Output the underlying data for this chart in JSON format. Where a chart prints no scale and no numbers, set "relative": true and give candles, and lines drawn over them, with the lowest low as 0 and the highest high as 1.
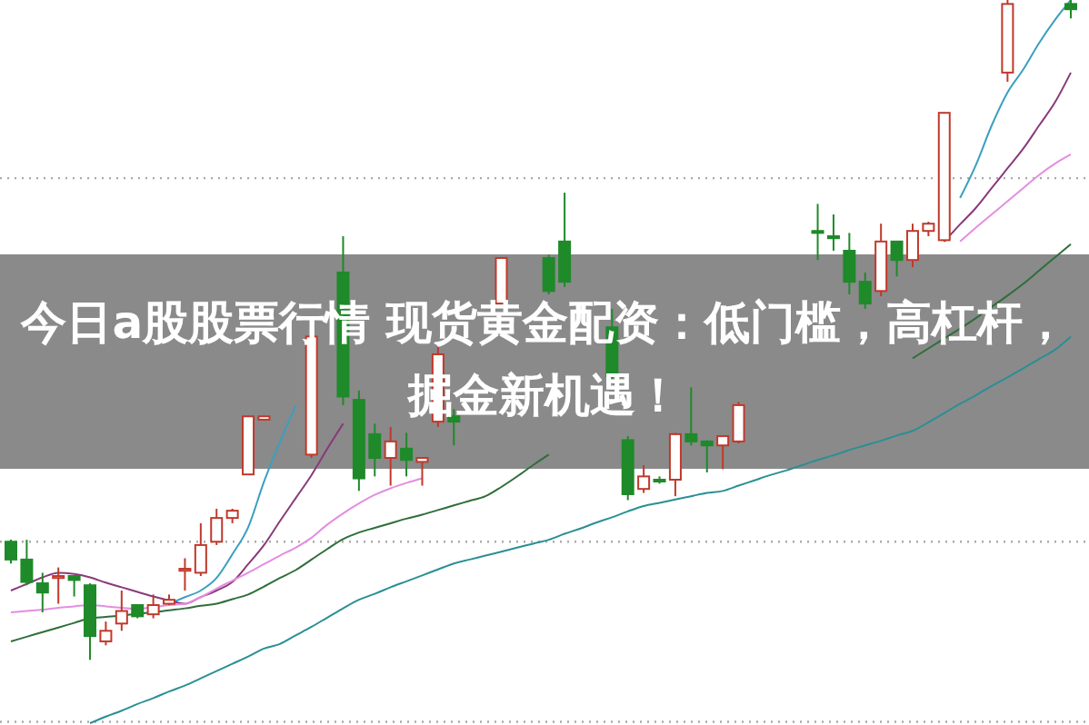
{
  "chart_data": {
    "type": "candlestick",
    "relative": true,
    "title": "今日a股股票行情 现货黄金配资：低门槛，高杠杆，掘金新机遇！",
    "categories": [
      null,
      null,
      null,
      null,
      null,
      null,
      null,
      null,
      null,
      null,
      null,
      null,
      null,
      null,
      null,
      null,
      null,
      null,
      null,
      null,
      null,
      null,
      null,
      null,
      null,
      null,
      null,
      null,
      null,
      null,
      null,
      null,
      null,
      null,
      null,
      null,
      null,
      null,
      null,
      null,
      null,
      null,
      null,
      null,
      null,
      null,
      null,
      null,
      null,
      null,
      null,
      null,
      null,
      null,
      null,
      null,
      null,
      null,
      null,
      null,
      null,
      null,
      null,
      null,
      null,
      null,
      null,
      null
    ],
    "ohlc": [
      [
        0.179,
        0.182,
        0.146,
        0.152
      ],
      [
        0.152,
        0.182,
        0.113,
        0.118
      ],
      [
        0.116,
        0.132,
        0.072,
        0.102
      ],
      [
        0.124,
        0.14,
        0.085,
        0.127
      ],
      [
        0.127,
        0.127,
        0.096,
        0.121
      ],
      [
        0.113,
        0.116,
        0,
        0.036
      ],
      [
        0.028,
        0.058,
        0.022,
        0.044
      ],
      [
        0.055,
        0.105,
        0.044,
        0.074
      ],
      [
        0.083,
        0.083,
        0.063,
        0.066
      ],
      [
        0.069,
        0.099,
        0.063,
        0.083
      ],
      [
        0.085,
        0.099,
        0.083,
        0.091
      ],
      [
        0.135,
        0.154,
        0.105,
        0.138
      ],
      [
        0.132,
        0.207,
        0.127,
        0.174
      ],
      [
        0.179,
        0.229,
        0.174,
        0.215
      ],
      [
        0.215,
        0.229,
        0.207,
        0.226
      ],
      [
        0.281,
        0.369,
        0.281,
        0.369
      ],
      [
        0.364,
        0.369,
        0.364,
        0.369
      ],
      null,
      null,
      [
        0.311,
        0.49,
        0.306,
        0.49
      ],
      null,
      [
        0.587,
        0.642,
        0.386,
        0.399
      ],
      [
        0.394,
        0.408,
        0.256,
        0.275
      ],
      [
        0.342,
        0.358,
        0.278,
        0.306
      ],
      [
        0.306,
        0.353,
        0.264,
        0.331
      ],
      [
        0.32,
        0.344,
        0.278,
        0.303
      ],
      [
        0.3,
        0.306,
        0.264,
        0.306
      ],
      [
        0.361,
        0.477,
        0.353,
        0.463
      ],
      [
        0.369,
        0.38,
        0.325,
        0.361
      ],
      null,
      null,
      [
        0.54,
        0.609,
        0.54,
        0.609
      ],
      null,
      null,
      [
        0.609,
        0.614,
        0.554,
        0.559
      ],
      [
        0.634,
        0.708,
        0.565,
        0.573
      ],
      null,
      null,
      [
        0.504,
        0.532,
        0.421,
        0.43
      ],
      [
        0.333,
        0.339,
        0.242,
        0.251
      ],
      [
        0.259,
        0.295,
        0.253,
        0.278
      ],
      [
        0.273,
        0.278,
        0.267,
        0.271
      ],
      [
        0.273,
        0.344,
        0.248,
        0.342
      ],
      [
        0.342,
        0.413,
        0.325,
        0.331
      ],
      [
        0.331,
        0.333,
        0.284,
        0.325
      ],
      [
        0.325,
        0.339,
        0.289,
        0.339
      ],
      [
        0.331,
        0.391,
        0.328,
        0.386
      ],
      null,
      null,
      null,
      null,
      [
        0.65,
        0.691,
        0.606,
        0.647
      ],
      [
        0.642,
        0.675,
        0.62,
        0.639
      ],
      [
        0.62,
        0.647,
        0.554,
        0.573
      ],
      [
        0.573,
        0.587,
        0.532,
        0.54
      ],
      [
        0.559,
        0.661,
        0.551,
        0.634
      ],
      [
        0.634,
        0.634,
        0.581,
        0.606
      ],
      [
        0.606,
        0.661,
        0.595,
        0.65
      ],
      [
        0.65,
        0.664,
        0.642,
        0.661
      ],
      [
        0.636,
        0.829,
        0.634,
        0.829
      ],
      null,
      null,
      null,
      [
        0.89,
        1,
        0.876,
        0.994
      ],
      null,
      null,
      null,
      [
        0.994,
        1,
        0.972,
        0.986
      ]
    ],
    "series": [
      {
        "type": "line",
        "color": "#3a9fc0",
        "values": [
          null,
          null,
          null,
          null,
          null,
          null,
          null,
          null,
          null,
          null,
          0.085,
          0.095,
          0.105,
          0.124,
          0.16,
          0.201,
          0.27,
          0.33,
          0.385,
          null,
          null,
          null,
          null,
          null,
          null,
          null,
          null,
          null,
          null,
          null,
          null,
          null,
          null,
          null,
          null,
          null,
          null,
          null,
          null,
          null,
          null,
          null,
          null,
          null,
          null,
          null,
          null,
          null,
          null,
          null,
          null,
          null,
          null,
          null,
          null,
          null,
          null,
          null,
          null,
          null,
          0.7,
          0.75,
          0.81,
          0.86,
          0.895,
          0.935,
          0.97,
          1.0
        ]
      },
      {
        "type": "line",
        "color": "#8a3a7a",
        "values": [
          0.105,
          0.115,
          0.125,
          0.132,
          0.13,
          0.125,
          0.117,
          0.11,
          0.103,
          0.096,
          0.09,
          0.085,
          0.095,
          0.105,
          0.118,
          0.145,
          0.174,
          0.21,
          0.245,
          0.28,
          0.32,
          0.358,
          null,
          null,
          null,
          null,
          null,
          null,
          null,
          null,
          null,
          null,
          null,
          null,
          null,
          null,
          null,
          null,
          null,
          null,
          null,
          null,
          null,
          null,
          null,
          null,
          null,
          null,
          null,
          null,
          null,
          null,
          null,
          null,
          null,
          null,
          null,
          null,
          null,
          0.634,
          0.66,
          0.685,
          0.715,
          0.745,
          0.775,
          0.81,
          0.845,
          0.89
        ]
      },
      {
        "type": "line",
        "color": "#e48ee0",
        "values": [
          0.072,
          0.074,
          0.076,
          0.079,
          0.081,
          0.083,
          0.081,
          0.079,
          0.077,
          0.08,
          0.083,
          0.085,
          0.095,
          0.108,
          0.12,
          0.132,
          0.145,
          0.158,
          0.17,
          0.185,
          0.205,
          0.222,
          0.237,
          0.25,
          0.26,
          0.268,
          0.275,
          null,
          null,
          null,
          null,
          null,
          null,
          null,
          null,
          null,
          null,
          null,
          null,
          null,
          null,
          null,
          null,
          null,
          null,
          null,
          null,
          null,
          null,
          null,
          null,
          null,
          null,
          null,
          null,
          null,
          null,
          null,
          null,
          null,
          0.634,
          0.655,
          0.675,
          0.695,
          0.715,
          0.735,
          0.752,
          0.766
        ]
      },
      {
        "type": "line",
        "color": "#2f6e3a",
        "values": [
          0.028,
          0.035,
          0.042,
          0.049,
          0.056,
          0.063,
          0.065,
          0.067,
          0.07,
          0.072,
          0.075,
          0.078,
          0.082,
          0.085,
          0.092,
          0.099,
          0.111,
          0.124,
          0.136,
          0.152,
          0.168,
          0.183,
          0.193,
          0.2,
          0.207,
          0.214,
          0.22,
          0.227,
          0.234,
          0.241,
          0.248,
          0.262,
          0.278,
          0.295,
          0.311,
          null,
          null,
          null,
          null,
          null,
          null,
          null,
          null,
          null,
          null,
          null,
          null,
          null,
          null,
          null,
          null,
          null,
          null,
          null,
          null,
          null,
          null,
          0.457,
          0.472,
          0.487,
          0.502,
          0.518,
          0.535,
          0.552,
          0.57,
          0.59,
          0.61,
          0.63
        ]
      },
      {
        "type": "line",
        "color": "#2a8f96",
        "values": [
          null,
          null,
          null,
          null,
          null,
          -0.096,
          -0.086,
          -0.077,
          -0.067,
          -0.058,
          -0.048,
          -0.039,
          -0.028,
          -0.017,
          -0.006,
          0.005,
          0.017,
          0.024,
          0.037,
          0.05,
          0.064,
          0.078,
          0.091,
          0.1,
          0.11,
          0.119,
          0.128,
          0.137,
          0.146,
          0.152,
          0.158,
          0.164,
          0.17,
          0.176,
          0.182,
          0.191,
          0.199,
          0.208,
          0.216,
          0.225,
          0.233,
          0.238,
          0.243,
          0.248,
          0.253,
          0.256,
          0.264,
          0.272,
          0.28,
          0.287,
          0.295,
          0.303,
          0.31,
          0.318,
          0.325,
          0.332,
          0.34,
          0.347,
          0.36,
          0.374,
          0.388,
          0.401,
          0.415,
          0.428,
          0.442,
          0.456,
          0.47,
          0.49
        ]
      }
    ],
    "ref_lines": [
      {
        "axis": "y",
        "value": 0.73,
        "color": "#aaaaaa",
        "line_style": "dotted"
      },
      {
        "axis": "y",
        "value": 0.179,
        "color": "#aaaaaa",
        "line_style": "dotted"
      },
      {
        "axis": "y",
        "value": -0.094,
        "color": "#aaaaaa",
        "line_style": "dotted"
      }
    ]
  }
}
